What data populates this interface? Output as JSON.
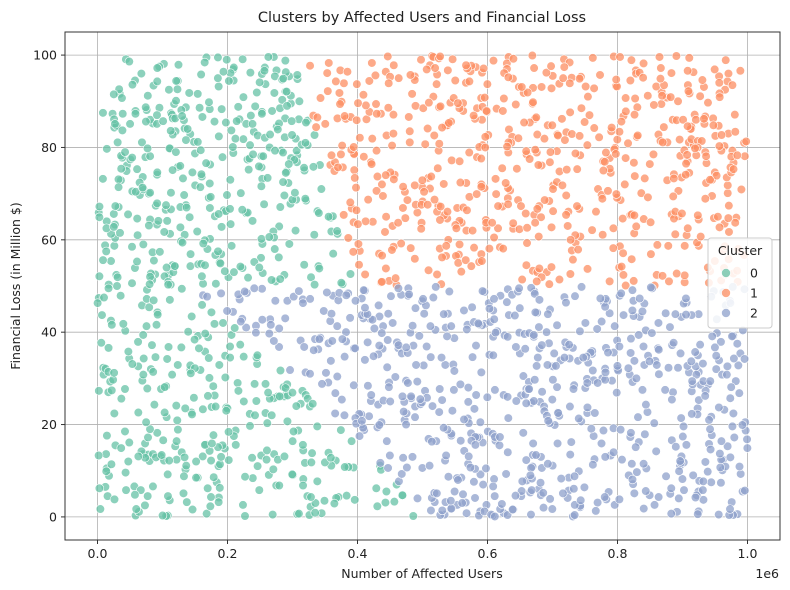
{
  "chart_data": {
    "type": "scatter",
    "title": "Clusters by Affected Users and Financial Loss",
    "xlabel": "Number of Affected Users",
    "ylabel": "Financial Loss (in Million $)",
    "x_offset_label": "1e6",
    "xlim": [
      -0.05,
      1.05
    ],
    "ylim": [
      -5,
      105
    ],
    "xticks": [
      0.0,
      0.2,
      0.4,
      0.6,
      0.8,
      1.0
    ],
    "xtick_labels": [
      "0.0",
      "0.2",
      "0.4",
      "0.6",
      "0.8",
      "1.0"
    ],
    "yticks": [
      0,
      20,
      40,
      60,
      80,
      100
    ],
    "ytick_labels": [
      "0",
      "20",
      "40",
      "60",
      "80",
      "100"
    ],
    "grid": true,
    "legend": {
      "title": "Cluster",
      "placement": "center-right"
    },
    "point_alpha": 0.75,
    "series": [
      {
        "name": "0",
        "color": "#66c2a5",
        "points": []
      },
      {
        "name": "1",
        "color": "#fc8d62",
        "points": []
      },
      {
        "name": "2",
        "color": "#8da0cb",
        "points": []
      }
    ]
  }
}
